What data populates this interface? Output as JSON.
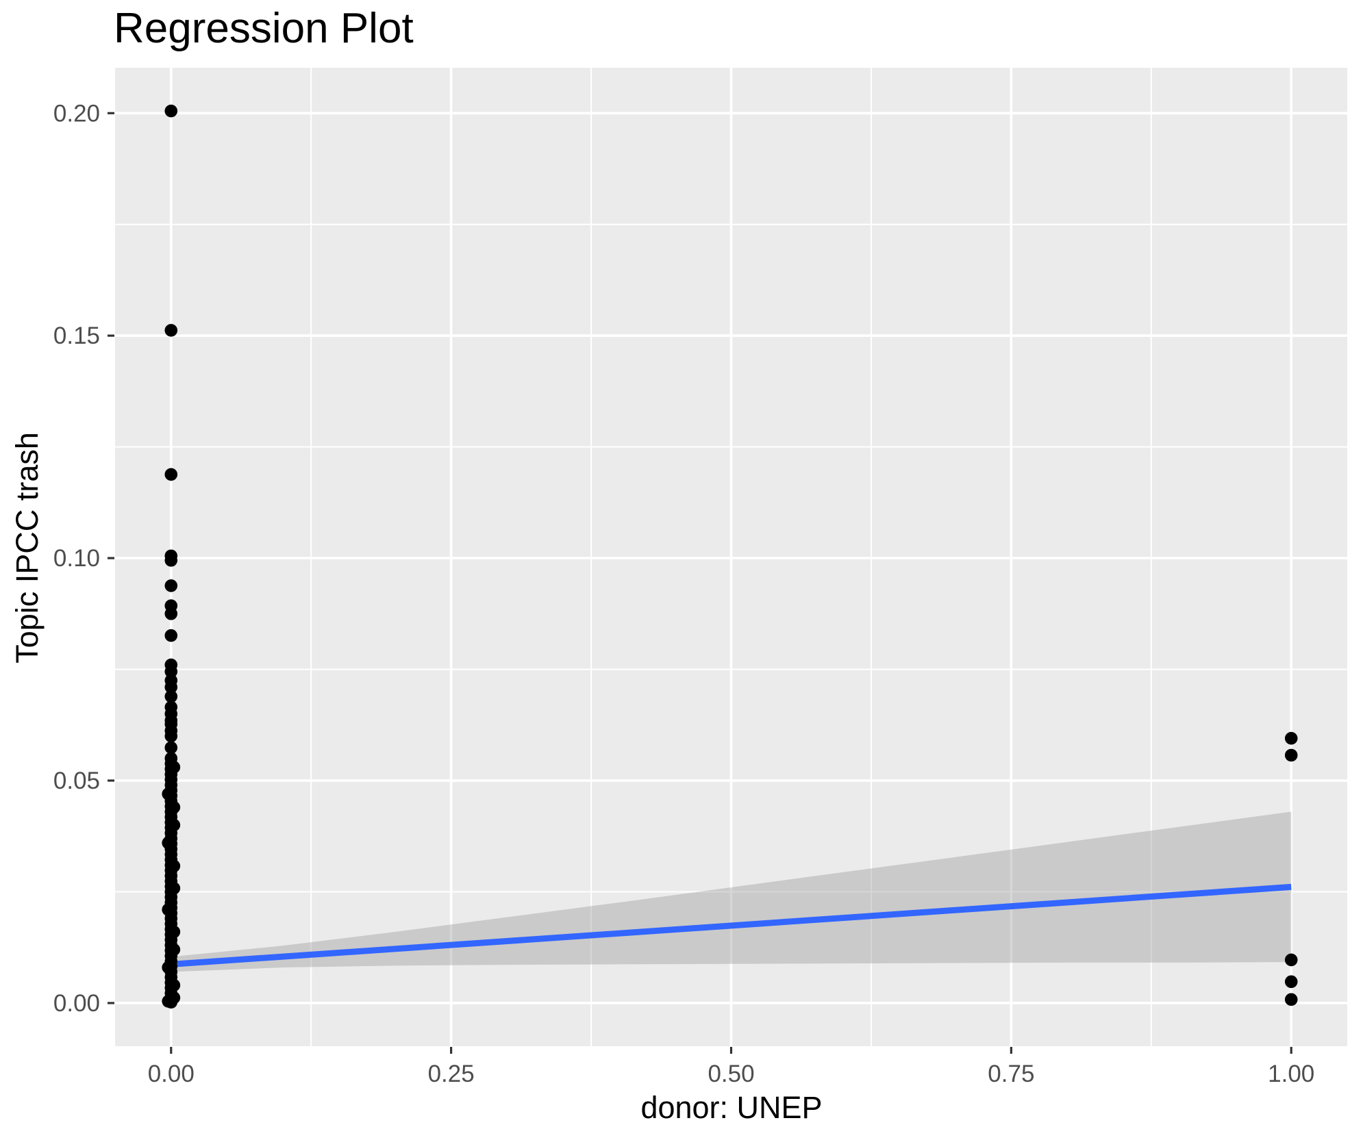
{
  "page": {
    "title": "Regression Plot"
  },
  "chart_data": {
    "type": "scatter",
    "title": "Regression Plot",
    "xlabel": "donor: UNEP",
    "ylabel": "Topic IPCC trash",
    "xlim": [
      -0.05,
      1.05
    ],
    "ylim": [
      -0.0097,
      0.2102
    ],
    "grid": "on",
    "legend": "none",
    "x_ticks": {
      "values": [
        0,
        0.25,
        0.5,
        0.75,
        1.0
      ],
      "labels": [
        "0.00",
        "0.25",
        "0.50",
        "0.75",
        "1.00"
      ],
      "minor": [
        0.125,
        0.375,
        0.625,
        0.875
      ]
    },
    "y_ticks": {
      "values": [
        0,
        0.05,
        0.1,
        0.15,
        0.2
      ],
      "labels": [
        "0.00",
        "0.05",
        "0.10",
        "0.15",
        "0.20"
      ],
      "minor": [
        0.025,
        0.075,
        0.125,
        0.175
      ]
    },
    "series": [
      {
        "name": "observations",
        "color": "#000000",
        "point_radius": 9.3,
        "points": [
          [
            0,
            0.2005
          ],
          [
            0,
            0.1512
          ],
          [
            0,
            0.1188
          ],
          [
            0,
            0.1005
          ],
          [
            0,
            0.0995
          ],
          [
            0,
            0.0938
          ],
          [
            0,
            0.0893
          ],
          [
            0,
            0.0875
          ],
          [
            0,
            0.0826
          ],
          [
            0,
            0.076
          ],
          [
            0,
            0.0745
          ],
          [
            0,
            0.0725
          ],
          [
            0,
            0.071
          ],
          [
            0,
            0.0689
          ],
          [
            0,
            0.0665
          ],
          [
            0,
            0.065
          ],
          [
            0,
            0.0635
          ],
          [
            0,
            0.0627
          ],
          [
            0,
            0.0612
          ],
          [
            0,
            0.06
          ],
          [
            0,
            0.0574
          ],
          [
            0,
            0.055
          ],
          [
            0.0025,
            0.053
          ],
          [
            0,
            0.0538
          ],
          [
            0,
            0.0526
          ],
          [
            0,
            0.0514
          ],
          [
            0,
            0.0502
          ],
          [
            0,
            0.049
          ],
          [
            0,
            0.0478
          ],
          [
            -0.0025,
            0.047
          ],
          [
            0,
            0.0466
          ],
          [
            0,
            0.0454
          ],
          [
            0.0025,
            0.044
          ],
          [
            0,
            0.0442
          ],
          [
            0,
            0.043
          ],
          [
            0,
            0.0418
          ],
          [
            0,
            0.0406
          ],
          [
            0.0025,
            0.04
          ],
          [
            0,
            0.0394
          ],
          [
            0,
            0.0382
          ],
          [
            0,
            0.037
          ],
          [
            -0.0025,
            0.036
          ],
          [
            0,
            0.0358
          ],
          [
            0,
            0.0346
          ],
          [
            0,
            0.0334
          ],
          [
            0,
            0.0322
          ],
          [
            0,
            0.031
          ],
          [
            0.0025,
            0.0308
          ],
          [
            0,
            0.0298
          ],
          [
            0,
            0.0286
          ],
          [
            0,
            0.0274
          ],
          [
            0,
            0.0262
          ],
          [
            0.0025,
            0.0258
          ],
          [
            0,
            0.025
          ],
          [
            0,
            0.0238
          ],
          [
            0,
            0.0226
          ],
          [
            0,
            0.0214
          ],
          [
            -0.0025,
            0.021
          ],
          [
            0,
            0.0202
          ],
          [
            0,
            0.019
          ],
          [
            0,
            0.0178
          ],
          [
            0,
            0.0166
          ],
          [
            0.0025,
            0.016
          ],
          [
            0,
            0.0154
          ],
          [
            0,
            0.0142
          ],
          [
            0,
            0.013
          ],
          [
            0,
            0.0118
          ],
          [
            0.0025,
            0.012
          ],
          [
            0,
            0.0106
          ],
          [
            0,
            0.0094
          ],
          [
            0,
            0.0082
          ],
          [
            -0.0025,
            0.008
          ],
          [
            0,
            0.007
          ],
          [
            0,
            0.0058
          ],
          [
            0,
            0.0046
          ],
          [
            0.0025,
            0.004
          ],
          [
            0,
            0.0034
          ],
          [
            0,
            0.0022
          ],
          [
            0,
            0.001
          ],
          [
            0.0025,
            0.0012
          ],
          [
            -0.0025,
            0.0004
          ],
          [
            0,
            0.0002
          ],
          [
            1,
            0.0595
          ],
          [
            1,
            0.0557
          ],
          [
            1,
            0.0097
          ],
          [
            1,
            0.0048
          ],
          [
            1,
            0.0008
          ]
        ]
      }
    ],
    "regression_line": {
      "color": "#3366FF",
      "width": 9,
      "x": [
        0,
        1
      ],
      "y": [
        0.0087,
        0.0261
      ]
    },
    "confidence_band": {
      "fill": "#999999",
      "opacity": 0.4,
      "x": [
        0,
        0.1,
        0.2,
        0.3,
        0.4,
        0.5,
        0.6,
        0.7,
        0.8,
        0.9,
        1.0
      ],
      "upper": [
        0.0104,
        0.0129,
        0.016,
        0.0193,
        0.0226,
        0.026,
        0.0294,
        0.0328,
        0.0362,
        0.0396,
        0.043
      ],
      "lower": [
        0.007,
        0.008,
        0.0084,
        0.0086,
        0.0087,
        0.0088,
        0.0089,
        0.009,
        0.0091,
        0.0091,
        0.0092
      ]
    },
    "colors": {
      "panel_bg": "#EBEBEB",
      "grid": "#FFFFFF",
      "tick_label": "#4D4D4D",
      "tick_mark": "#333333",
      "title": "#000000"
    }
  }
}
